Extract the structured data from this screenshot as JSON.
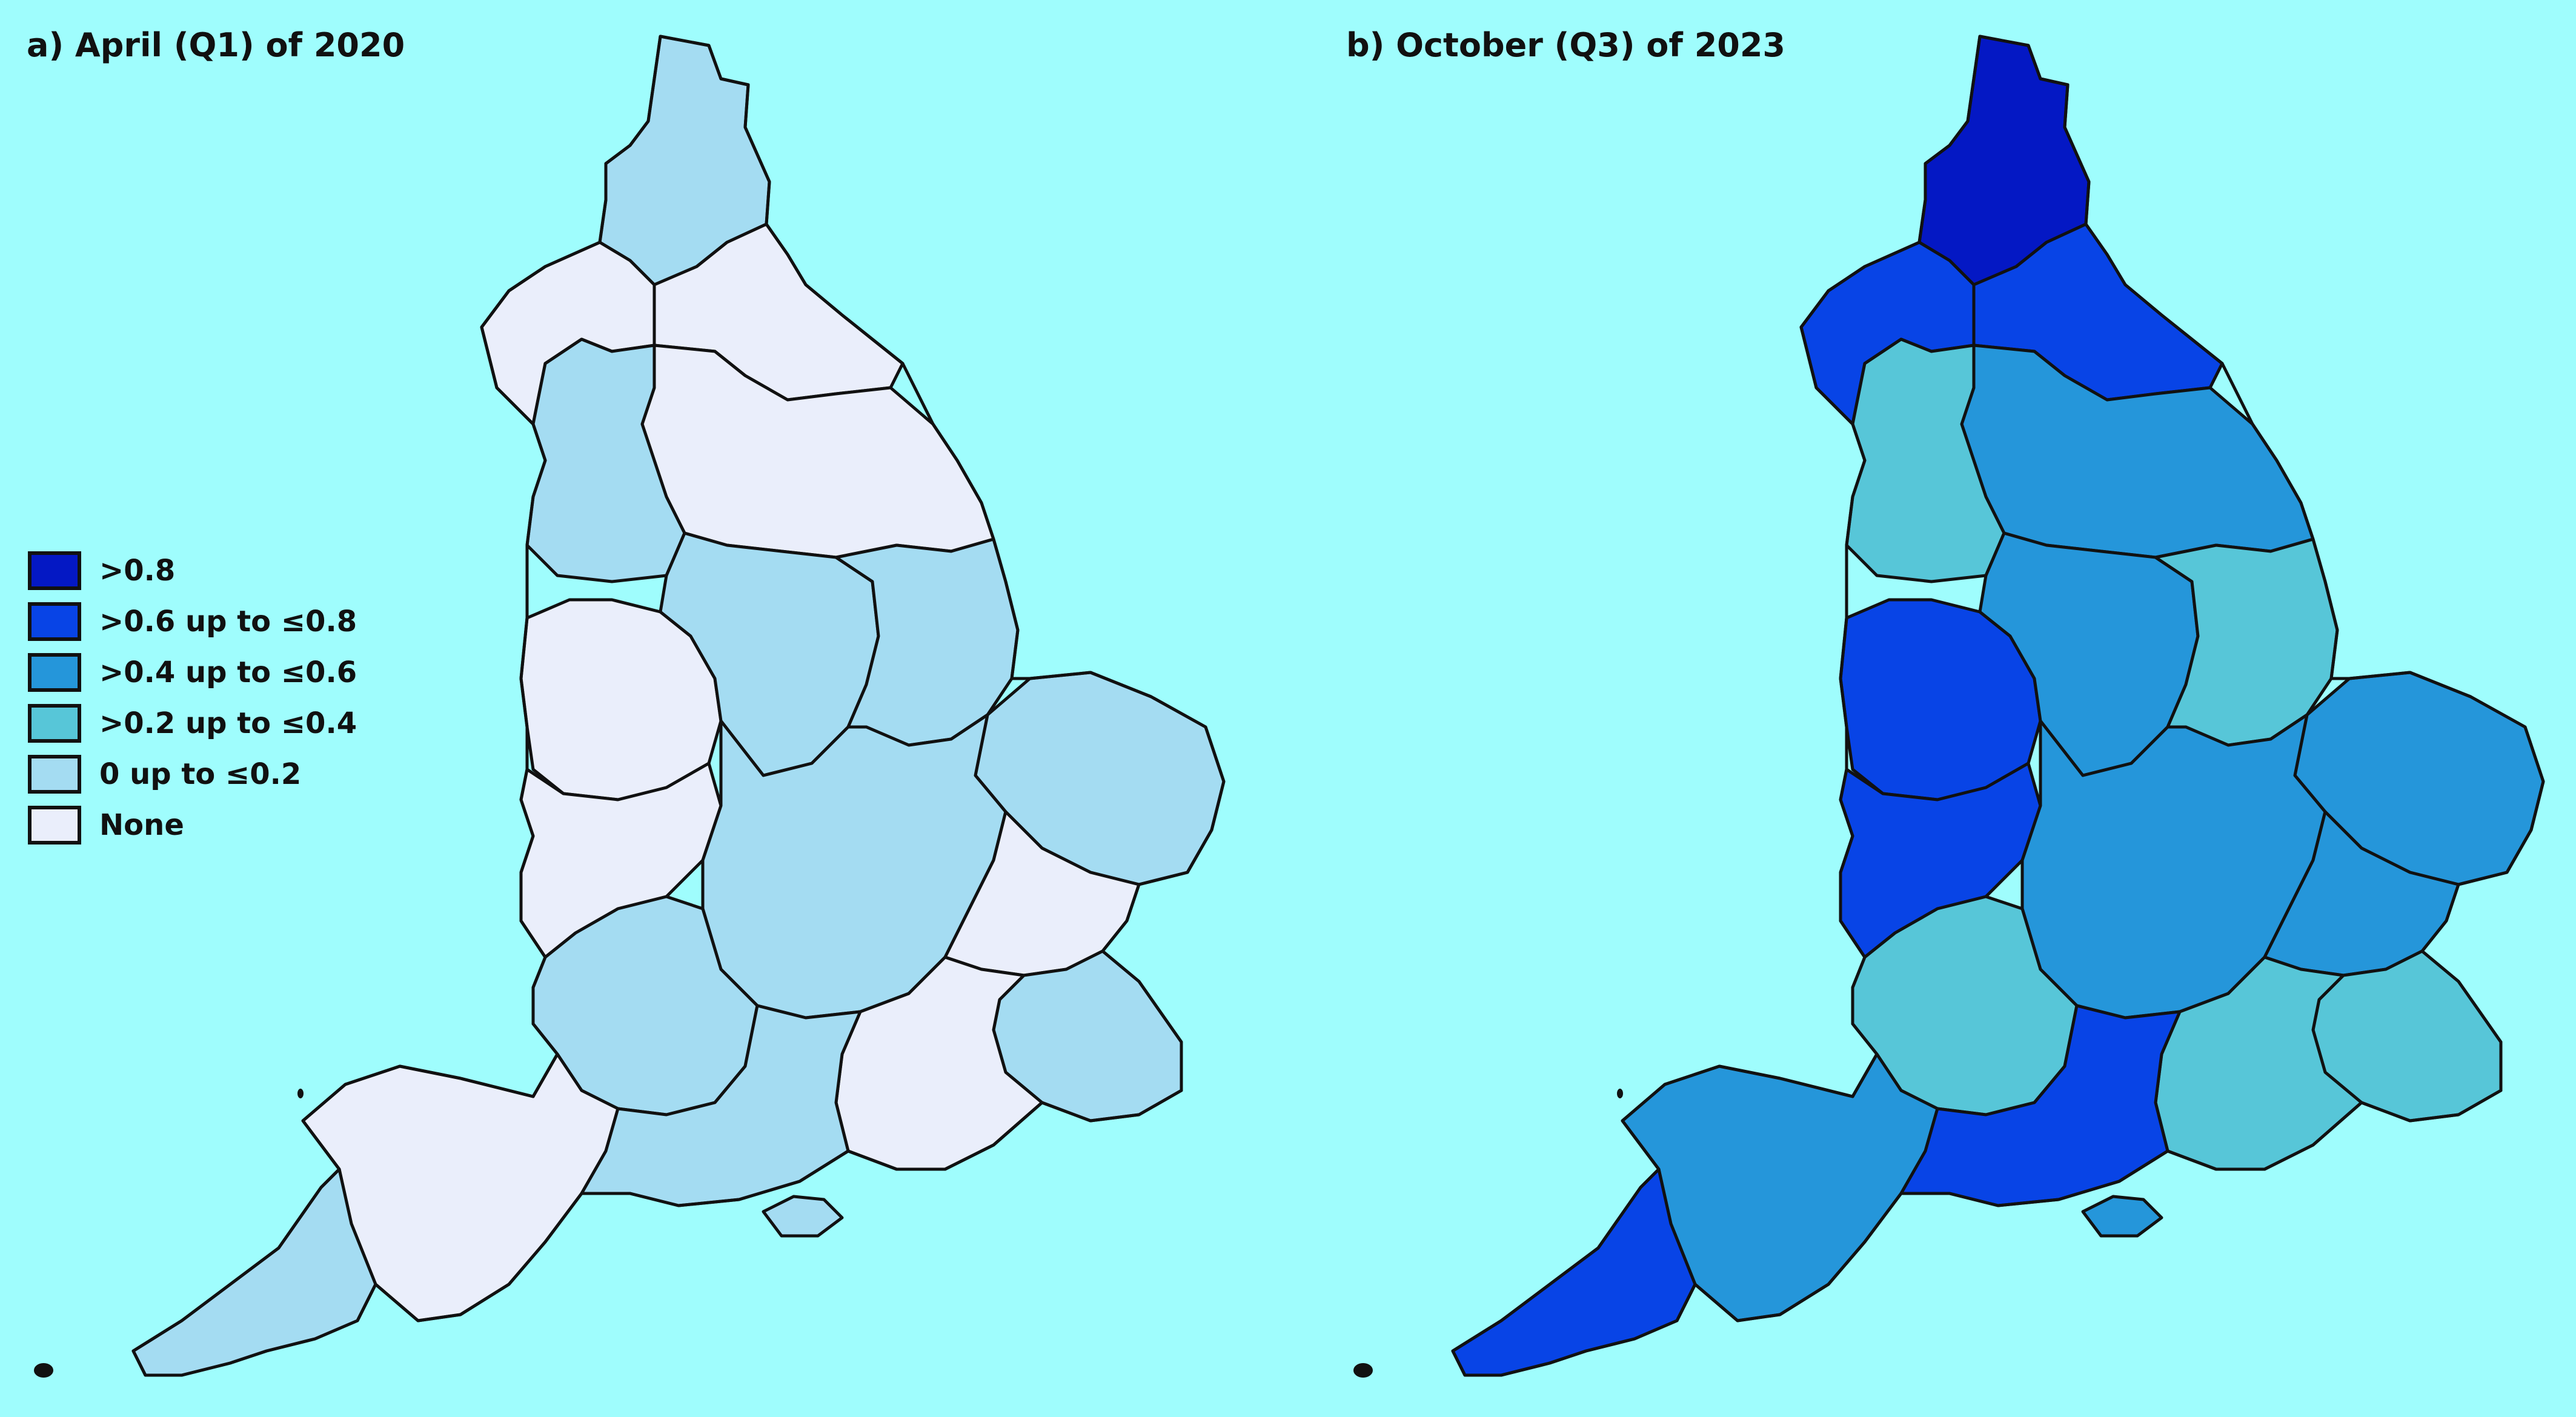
{
  "maps": [
    {
      "title": "a) April (Q1) of 2020",
      "north": "c4",
      "northeast": "c5",
      "northwest_coast": "c5",
      "yorkshire": "c5",
      "lancashire": "c4",
      "midlands_west": "c5",
      "midlands_central": "c4",
      "lincolnshire": "c4",
      "east_anglia": "c4",
      "wales_border": "c5",
      "south_central": "c4",
      "london_area": "c5",
      "kent": "c4",
      "sussex": "c5",
      "somerset": "c4",
      "devon": "c5",
      "cornwall": "c4",
      "dorset": "c4",
      "isle_of_wight": "c4"
    },
    {
      "title": "b) October (Q3) of 2023",
      "north": "c0",
      "northeast": "c1",
      "northwest_coast": "c1",
      "yorkshire": "c2",
      "lancashire": "c3",
      "midlands_west": "c1",
      "midlands_central": "c2",
      "lincolnshire": "c3",
      "east_anglia": "c2",
      "wales_border": "c1",
      "south_central": "c2",
      "london_area": "c2",
      "kent": "c3",
      "sussex": "c3",
      "somerset": "c3",
      "devon": "c2",
      "cornwall": "c1",
      "dorset": "c1",
      "isle_of_wight": "c2"
    }
  ],
  "legend": {
    "items": [
      {
        "label": ">0.8",
        "color": "#0418c4"
      },
      {
        "label": ">0.6 up to ≤0.8",
        "color": "#0844e6"
      },
      {
        "label": ">0.4 up to ≤0.6",
        "color": "#2596da"
      },
      {
        "label": ">0.2 up to ≤0.4",
        "color": "#57c6d8"
      },
      {
        "label": "0 up to ≤0.2",
        "color": "#a4dcf2"
      },
      {
        "label": "None",
        "color": "#eaeefb"
      }
    ]
  },
  "colors": {
    "c0": "#0418c4",
    "c1": "#0844e6",
    "c2": "#2596da",
    "c3": "#57c6d8",
    "c4": "#a4dcf2",
    "c5": "#eaeefb",
    "background": "#9ffdfd",
    "border": "#111111"
  }
}
